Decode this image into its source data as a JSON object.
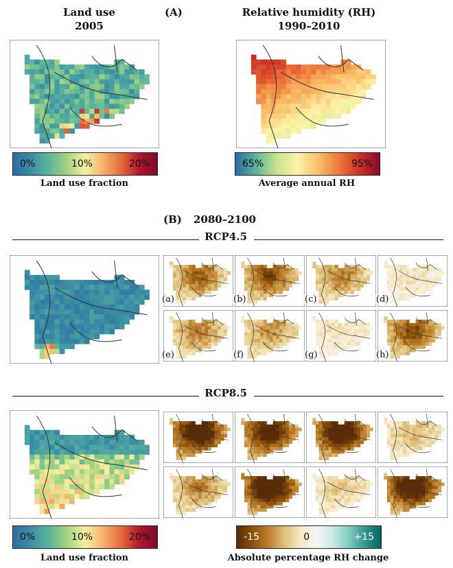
{
  "panel_a": {
    "tag": "(A)",
    "land_use": {
      "title_line1": "Land use",
      "title_line2": "2005",
      "colorbar": {
        "ticks": [
          "0%",
          "10%",
          "20%"
        ],
        "label": "Land use fraction"
      }
    },
    "humidity": {
      "title_line1": "Relative humidity (RH)",
      "title_line2": "1990–2010",
      "colorbar": {
        "ticks": [
          "65%",
          "",
          "95%"
        ],
        "label": "Average annual RH"
      }
    }
  },
  "panel_b": {
    "tag": "(B)",
    "period": "2080–2100",
    "rcp45": {
      "label": "RCP4.5",
      "subplots": [
        "(a)",
        "(b)",
        "(c)",
        "(d)",
        "(e)",
        "(f)",
        "(g)",
        "(h)"
      ]
    },
    "rcp85": {
      "label": "RCP8.5"
    },
    "land_colorbar": {
      "ticks": [
        "0%",
        "10%",
        "20%"
      ],
      "label": "Land use fraction"
    },
    "change_colorbar": {
      "ticks": [
        "-15",
        "0",
        "+15"
      ],
      "label": "Absolute percentage RH change"
    }
  },
  "colors": {
    "landuse_scale": [
      "#2b6da3",
      "#3b8fa5",
      "#5bb59b",
      "#a3d47e",
      "#f3f0a2",
      "#f6b26b",
      "#e36b3b",
      "#b2182b",
      "#7d0a2c"
    ],
    "rh_scale": [
      "#2b6da3",
      "#5bb59b",
      "#c9e48c",
      "#fbf4a8",
      "#f9c16c",
      "#ee7a3a",
      "#cf3427",
      "#8b0a2c"
    ],
    "change_scale": [
      "#5a2c07",
      "#8c510a",
      "#bf812d",
      "#dfc27d",
      "#f6e8c3",
      "#f5f5f5",
      "#c7eae5",
      "#80cdc1",
      "#35978f",
      "#01665e"
    ]
  }
}
